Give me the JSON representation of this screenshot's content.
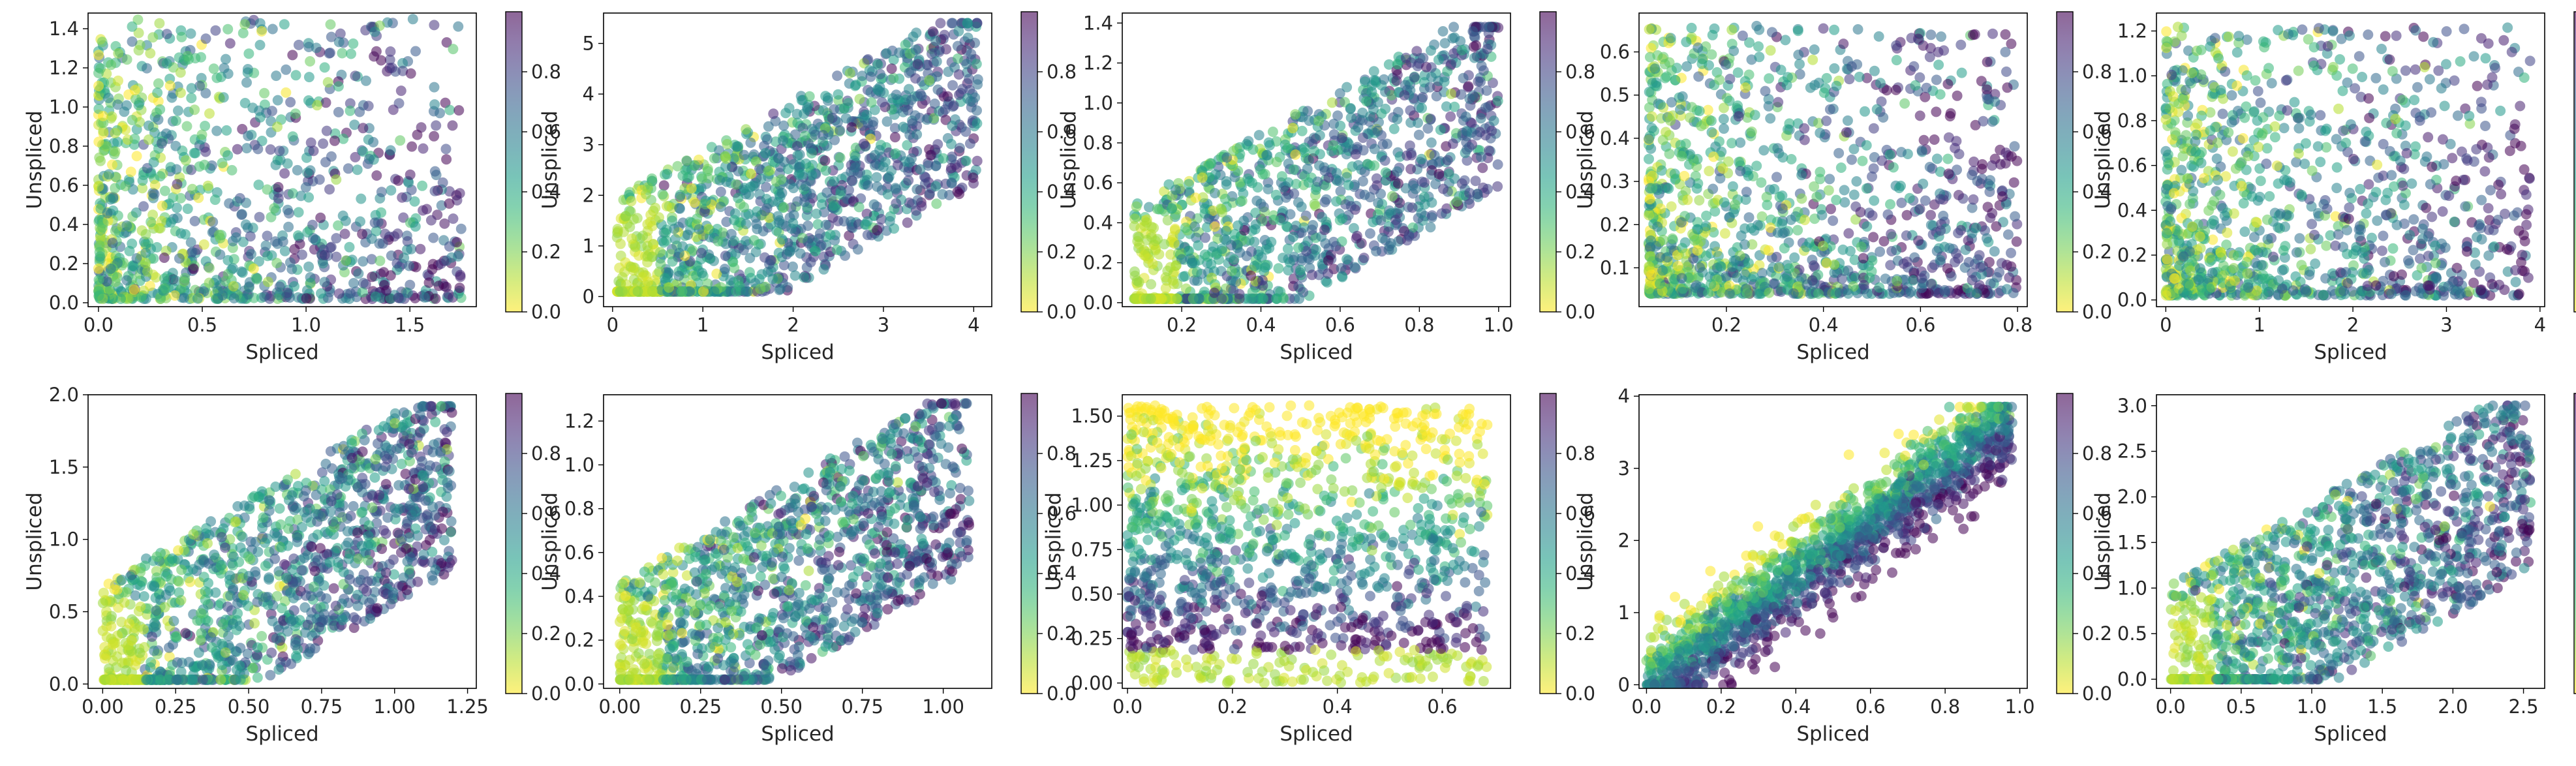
{
  "colorbar": {
    "colormap": "viridis_r",
    "range": [
      0,
      1
    ],
    "ticks": [
      "0.0",
      "0.2",
      "0.4",
      "0.6",
      "0.8"
    ],
    "tick_values": [
      0,
      0.2,
      0.4,
      0.6,
      0.8
    ]
  },
  "chart_data": [
    {
      "type": "scatter",
      "xlabel": "Spliced",
      "ylabel": "Unspliced",
      "xlim": [
        -0.05,
        1.82
      ],
      "ylim": [
        -0.02,
        1.48
      ],
      "xticks": [
        0.0,
        0.5,
        1.0,
        1.5
      ],
      "xtick_labels": [
        "0.0",
        "0.5",
        "1.0",
        "1.5"
      ],
      "yticks": [
        0.0,
        0.2,
        0.4,
        0.6,
        0.8,
        1.0,
        1.2,
        1.4
      ],
      "ytick_labels": [
        "0.0",
        "0.2",
        "0.4",
        "0.6",
        "0.8",
        "1.0",
        "1.2",
        "1.4"
      ],
      "x_extent": [
        0.0,
        1.75
      ],
      "y_extent": [
        0.02,
        1.45
      ],
      "n_points": 1100,
      "pattern": "low"
    },
    {
      "type": "scatter",
      "xlabel": "Spliced",
      "ylabel": "Unspliced",
      "xlim": [
        -0.1,
        4.2
      ],
      "ylim": [
        -0.2,
        5.6
      ],
      "xticks": [
        0,
        1,
        2,
        3,
        4
      ],
      "xtick_labels": [
        "0",
        "1",
        "2",
        "3",
        "4"
      ],
      "yticks": [
        0,
        1,
        2,
        3,
        4,
        5
      ],
      "ytick_labels": [
        "0",
        "1",
        "2",
        "3",
        "4",
        "5"
      ],
      "x_extent": [
        0.05,
        4.05
      ],
      "y_extent": [
        0.1,
        5.4
      ],
      "n_points": 1300,
      "pattern": "diag"
    },
    {
      "type": "scatter",
      "xlabel": "Spliced",
      "ylabel": "Unspliced",
      "xlim": [
        0.05,
        1.03
      ],
      "ylim": [
        -0.02,
        1.45
      ],
      "xticks": [
        0.2,
        0.4,
        0.6,
        0.8,
        1.0
      ],
      "xtick_labels": [
        "0.2",
        "0.4",
        "0.6",
        "0.8",
        "1.0"
      ],
      "yticks": [
        0.0,
        0.2,
        0.4,
        0.6,
        0.8,
        1.0,
        1.2,
        1.4
      ],
      "ytick_labels": [
        "0.0",
        "0.2",
        "0.4",
        "0.6",
        "0.8",
        "1.0",
        "1.2",
        "1.4"
      ],
      "x_extent": [
        0.08,
        1.0
      ],
      "y_extent": [
        0.02,
        1.38
      ],
      "n_points": 1200,
      "pattern": "diag"
    },
    {
      "type": "scatter",
      "xlabel": "Spliced",
      "ylabel": "Unspliced",
      "xlim": [
        0.02,
        0.82
      ],
      "ylim": [
        0.01,
        0.69
      ],
      "xticks": [
        0.2,
        0.4,
        0.6,
        0.8
      ],
      "xtick_labels": [
        "0.2",
        "0.4",
        "0.6",
        "0.8"
      ],
      "yticks": [
        0.1,
        0.2,
        0.3,
        0.4,
        0.5,
        0.6
      ],
      "ytick_labels": [
        "0.1",
        "0.2",
        "0.3",
        "0.4",
        "0.5",
        "0.6"
      ],
      "x_extent": [
        0.04,
        0.8
      ],
      "y_extent": [
        0.04,
        0.66
      ],
      "n_points": 1200,
      "pattern": "low"
    },
    {
      "type": "scatter",
      "xlabel": "Spliced",
      "ylabel": "Unspliced",
      "xlim": [
        -0.1,
        4.05
      ],
      "ylim": [
        -0.03,
        1.28
      ],
      "xticks": [
        0,
        1,
        2,
        3,
        4
      ],
      "xtick_labels": [
        "0",
        "1",
        "2",
        "3",
        "4"
      ],
      "yticks": [
        0.0,
        0.2,
        0.4,
        0.6,
        0.8,
        1.0,
        1.2
      ],
      "ytick_labels": [
        "0.0",
        "0.2",
        "0.4",
        "0.6",
        "0.8",
        "1.0",
        "1.2"
      ],
      "x_extent": [
        0.0,
        3.9
      ],
      "y_extent": [
        0.02,
        1.22
      ],
      "n_points": 1100,
      "pattern": "low"
    },
    {
      "type": "scatter",
      "xlabel": "Spliced",
      "ylabel": "Unspliced",
      "xlim": [
        -0.05,
        1.28
      ],
      "ylim": [
        -0.03,
        2.0
      ],
      "xticks": [
        0.0,
        0.25,
        0.5,
        0.75,
        1.0,
        1.25
      ],
      "xtick_labels": [
        "0.00",
        "0.25",
        "0.50",
        "0.75",
        "1.00",
        "1.25"
      ],
      "yticks": [
        0.0,
        0.5,
        1.0,
        1.5,
        2.0
      ],
      "ytick_labels": [
        "0.0",
        "0.5",
        "1.0",
        "1.5",
        "2.0"
      ],
      "x_extent": [
        0.0,
        1.2
      ],
      "y_extent": [
        0.03,
        1.92
      ],
      "n_points": 1300,
      "pattern": "diag"
    },
    {
      "type": "scatter",
      "xlabel": "Spliced",
      "ylabel": "Unspliced",
      "xlim": [
        -0.05,
        1.15
      ],
      "ylim": [
        -0.02,
        1.32
      ],
      "xticks": [
        0.0,
        0.25,
        0.5,
        0.75,
        1.0
      ],
      "xtick_labels": [
        "0.00",
        "0.25",
        "0.50",
        "0.75",
        "1.00"
      ],
      "yticks": [
        0.0,
        0.2,
        0.4,
        0.6,
        0.8,
        1.0,
        1.2
      ],
      "ytick_labels": [
        "0.0",
        "0.2",
        "0.4",
        "0.6",
        "0.8",
        "1.0",
        "1.2"
      ],
      "x_extent": [
        0.0,
        1.08
      ],
      "y_extent": [
        0.02,
        1.28
      ],
      "n_points": 1300,
      "pattern": "diag"
    },
    {
      "type": "scatter",
      "xlabel": "Spliced",
      "ylabel": "Unspliced",
      "xlim": [
        -0.01,
        0.73
      ],
      "ylim": [
        -0.03,
        1.62
      ],
      "xticks": [
        0.0,
        0.2,
        0.4,
        0.6
      ],
      "xtick_labels": [
        "0.0",
        "0.2",
        "0.4",
        "0.6"
      ],
      "yticks": [
        0.0,
        0.25,
        0.5,
        0.75,
        1.0,
        1.25,
        1.5
      ],
      "ytick_labels": [
        "0.00",
        "0.25",
        "0.50",
        "0.75",
        "1.00",
        "1.25",
        "1.50"
      ],
      "x_extent": [
        0.0,
        0.7
      ],
      "y_extent": [
        0.0,
        1.56
      ],
      "n_points": 1300,
      "pattern": "bands"
    },
    {
      "type": "scatter",
      "xlabel": "Spliced",
      "ylabel": "Unspliced",
      "xlim": [
        -0.02,
        1.02
      ],
      "ylim": [
        -0.05,
        4.02
      ],
      "xticks": [
        0.0,
        0.2,
        0.4,
        0.6,
        0.8,
        1.0
      ],
      "xtick_labels": [
        "0.0",
        "0.2",
        "0.4",
        "0.6",
        "0.8",
        "1.0"
      ],
      "yticks": [
        0,
        1,
        2,
        3,
        4
      ],
      "ytick_labels": [
        "0",
        "1",
        "2",
        "3",
        "4"
      ],
      "x_extent": [
        0.0,
        0.98
      ],
      "y_extent": [
        0.0,
        3.85
      ],
      "n_points": 1500,
      "pattern": "linear"
    },
    {
      "type": "scatter",
      "xlabel": "Spliced",
      "ylabel": "Unspliced",
      "xlim": [
        -0.1,
        2.65
      ],
      "ylim": [
        -0.1,
        3.12
      ],
      "xticks": [
        0.0,
        0.5,
        1.0,
        1.5,
        2.0,
        2.5
      ],
      "xtick_labels": [
        "0.0",
        "0.5",
        "1.0",
        "1.5",
        "2.0",
        "2.5"
      ],
      "yticks": [
        0.0,
        0.5,
        1.0,
        1.5,
        2.0,
        2.5,
        3.0
      ],
      "ytick_labels": [
        "0.0",
        "0.5",
        "1.0",
        "1.5",
        "2.0",
        "2.5",
        "3.0"
      ],
      "x_extent": [
        0.0,
        2.55
      ],
      "y_extent": [
        0.0,
        3.0
      ],
      "n_points": 1300,
      "pattern": "diag"
    }
  ]
}
